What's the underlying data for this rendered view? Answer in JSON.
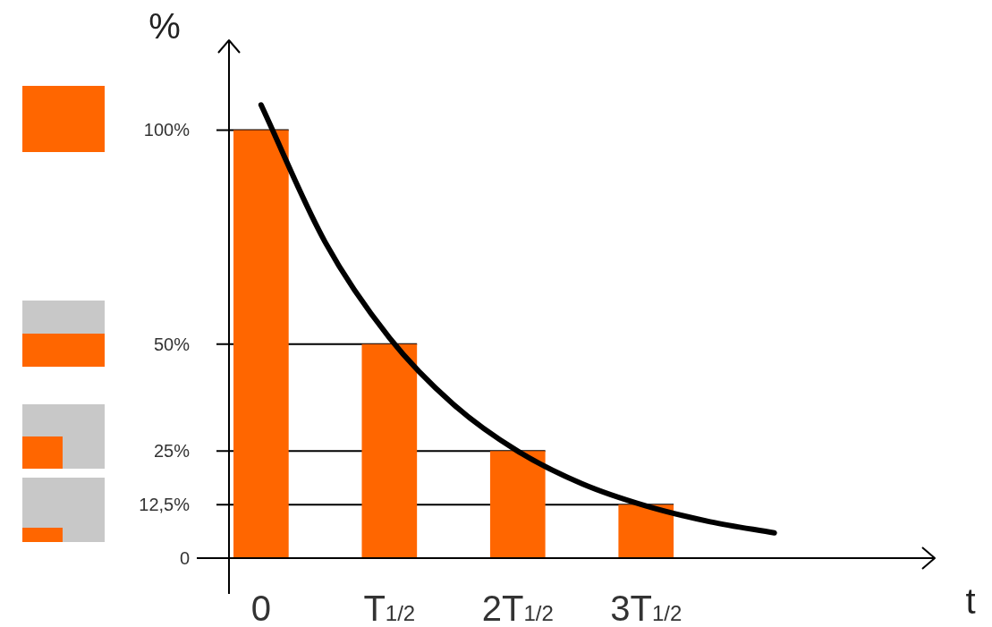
{
  "chart_data": {
    "type": "bar",
    "xlabel": "t",
    "ylabel": "%",
    "categories": [
      "0",
      null,
      "T$_{1/2}$",
      null,
      "2T$_{1/2}$",
      null,
      "3T$_{1/2}$",
      null,
      null,
      null,
      null
    ],
    "ylim": [
      0,
      121
    ],
    "yticks": [
      0,
      {
        "value": 12.5,
        "label": "12,5%"
      },
      {
        "value": 25,
        "label": "25%"
      },
      {
        "value": 50,
        "label": "50%"
      },
      {
        "value": 100,
        "label": "100%"
      }
    ],
    "grid": false,
    "legend": false,
    "series": [
      {
        "color": "#ff6600",
        "values": [
          100,
          null,
          50,
          null,
          25,
          null,
          12.5,
          null,
          null,
          null,
          null
        ]
      },
      {
        "type": "line",
        "color": "#000000",
        "marker": "none",
        "values": [
          105.9,
          73.8,
          51.5,
          35.9,
          25,
          17.4,
          12.2,
          8.5,
          5.9,
          null,
          null
        ]
      }
    ],
    "ref_lines": [
      {
        "axis": "y",
        "value": 100
      },
      {
        "axis": "y",
        "value": 50
      },
      {
        "axis": "y",
        "value": 25
      },
      {
        "axis": "y",
        "value": 12.5
      }
    ]
  }
}
